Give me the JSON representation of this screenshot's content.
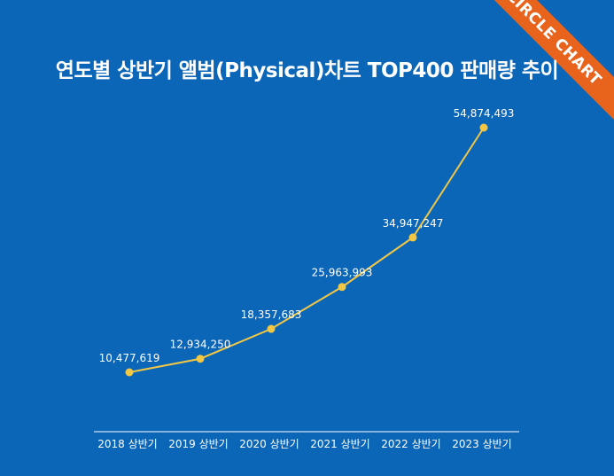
{
  "brand": {
    "ribbon_text": "CIRCLE CHART",
    "ribbon_color": "#e8631c",
    "background_color": "#0b66b8",
    "line_color": "#f2c744"
  },
  "chart_data": {
    "type": "line",
    "title": "연도별 상반기 앨범(Physical)차트 TOP400 판매량 추이",
    "xlabel": "",
    "ylabel": "",
    "ylim": [
      0,
      60000000
    ],
    "grid": false,
    "categories": [
      "2018 상반기",
      "2019 상반기",
      "2020 상반기",
      "2021 상반기",
      "2022 상반기",
      "2023 상반기"
    ],
    "series": [
      {
        "values": [
          10477619,
          12934250,
          18357683,
          25963993,
          34947247,
          54874493
        ],
        "labels": [
          "10,477,619",
          "12,934,250",
          "18,357,683",
          "25,963,993",
          "34,947,247",
          "54,874,493"
        ]
      }
    ]
  }
}
